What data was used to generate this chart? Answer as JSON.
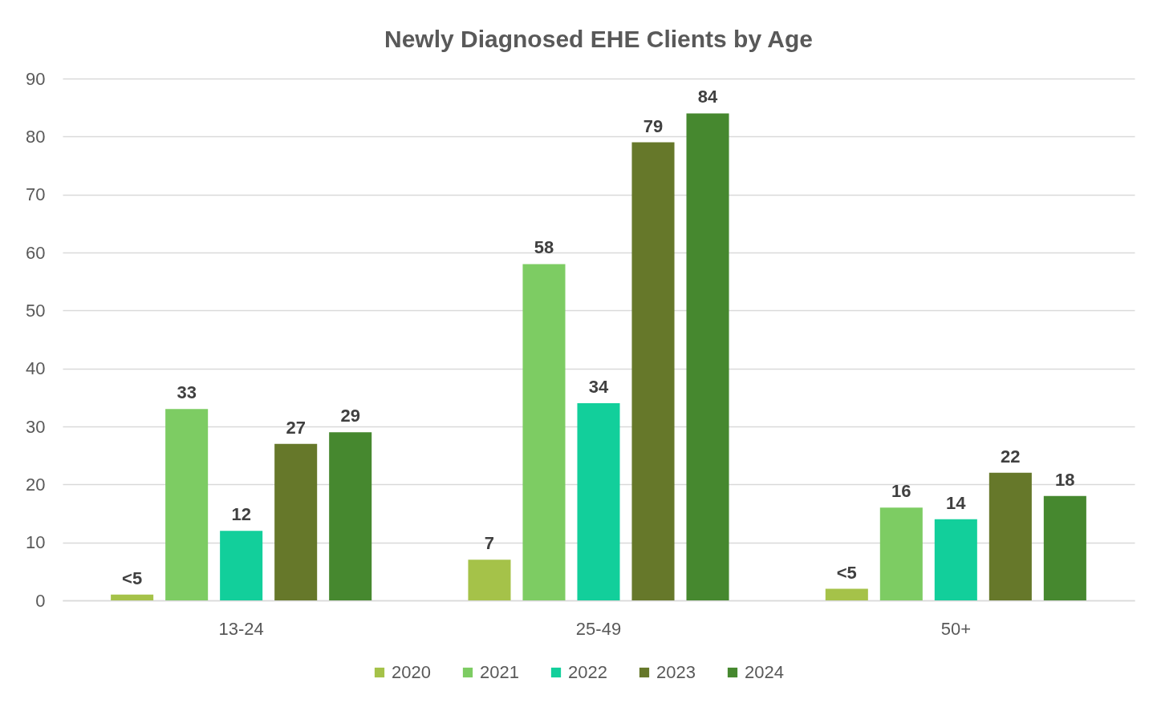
{
  "chart_data": {
    "type": "bar",
    "title": "Newly Diagnosed EHE Clients by Age",
    "categories": [
      "13-24",
      "25-49",
      "50+"
    ],
    "series": [
      {
        "name": "2020",
        "color": "#a5c249",
        "values": [
          1,
          7,
          2
        ],
        "value_labels": [
          "<5",
          "7",
          "<5"
        ]
      },
      {
        "name": "2021",
        "color": "#7dcc63",
        "values": [
          33,
          58,
          16
        ],
        "value_labels": [
          "33",
          "58",
          "16"
        ]
      },
      {
        "name": "2022",
        "color": "#12cf9b",
        "values": [
          12,
          34,
          14
        ],
        "value_labels": [
          "12",
          "34",
          "14"
        ]
      },
      {
        "name": "2023",
        "color": "#66782a",
        "values": [
          27,
          79,
          22
        ],
        "value_labels": [
          "27",
          "79",
          "22"
        ]
      },
      {
        "name": "2024",
        "color": "#46882f",
        "values": [
          29,
          84,
          18
        ],
        "value_labels": [
          "29",
          "84",
          "18"
        ]
      }
    ],
    "ylim": [
      0,
      90
    ],
    "yticks": [
      0,
      10,
      20,
      30,
      40,
      50,
      60,
      70,
      80,
      90
    ],
    "grid": "y",
    "legend": "bottom"
  }
}
